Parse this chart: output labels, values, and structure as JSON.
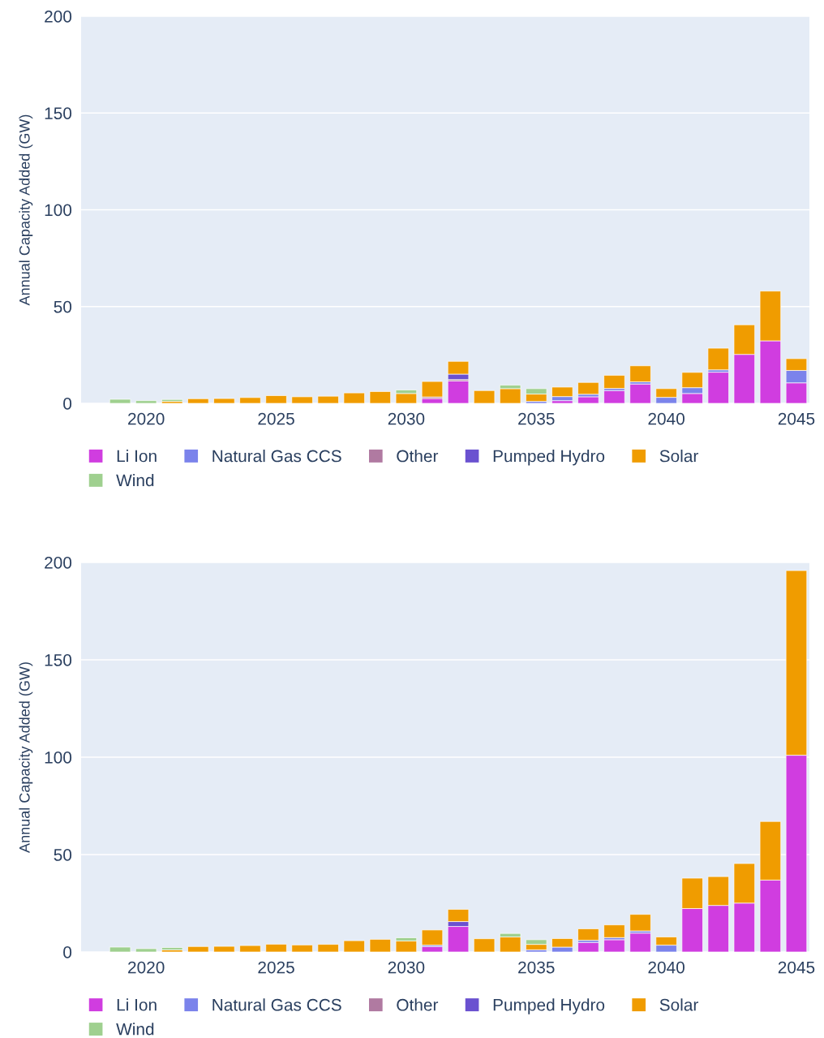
{
  "chart_data": [
    {
      "type": "bar",
      "stacked": true,
      "ylabel": "Annual Capacity Added (GW)",
      "x": [
        2019,
        2020,
        2021,
        2022,
        2023,
        2024,
        2025,
        2026,
        2027,
        2028,
        2029,
        2030,
        2031,
        2032,
        2033,
        2034,
        2035,
        2036,
        2037,
        2038,
        2039,
        2040,
        2041,
        2042,
        2043,
        2044,
        2045
      ],
      "xlim": [
        2017.5,
        2045.5
      ],
      "xticks": [
        2020,
        2025,
        2030,
        2035,
        2040,
        2045
      ],
      "ylim": [
        0,
        200
      ],
      "yticks": [
        0,
        50,
        100,
        150,
        200
      ],
      "grid": "y",
      "legend": "bottom",
      "series": [
        {
          "name": "Li Ion",
          "color": "#d03de0",
          "values": [
            null,
            null,
            null,
            null,
            null,
            null,
            null,
            null,
            null,
            null,
            null,
            null,
            2.5,
            11.6,
            null,
            null,
            null,
            1.4,
            3.4,
            6.6,
            10.0,
            null,
            5.1,
            16.1,
            25.3,
            32.3,
            10.6
          ]
        },
        {
          "name": "Natural Gas CCS",
          "color": "#7b83eb",
          "values": [
            null,
            null,
            null,
            null,
            null,
            null,
            null,
            null,
            null,
            null,
            null,
            null,
            null,
            null,
            null,
            null,
            1.0,
            2.1,
            1.3,
            1.1,
            1.1,
            3.1,
            3.0,
            1.2,
            null,
            null,
            6.4
          ]
        },
        {
          "name": "Other",
          "color": "#b07aa1",
          "values": [
            null,
            null,
            null,
            null,
            null,
            null,
            null,
            null,
            null,
            null,
            null,
            null,
            0.8,
            0.7,
            null,
            null,
            null,
            null,
            null,
            null,
            null,
            null,
            null,
            null,
            null,
            null,
            null
          ]
        },
        {
          "name": "Pumped Hydro",
          "color": "#6a51d0",
          "values": [
            null,
            null,
            null,
            null,
            null,
            null,
            null,
            null,
            null,
            null,
            null,
            null,
            null,
            2.8,
            null,
            null,
            null,
            null,
            null,
            null,
            null,
            null,
            null,
            null,
            null,
            null,
            null
          ]
        },
        {
          "name": "Solar",
          "color": "#f09c00",
          "values": [
            null,
            null,
            1.0,
            2.4,
            2.5,
            3.0,
            4.0,
            3.4,
            3.7,
            5.4,
            6.1,
            5.1,
            8.0,
            6.6,
            6.6,
            7.6,
            3.8,
            4.9,
            6.1,
            6.8,
            8.3,
            4.5,
            7.9,
            11.2,
            15.3,
            25.7,
            6.1
          ]
        },
        {
          "name": "Wind",
          "color": "#9fd08f",
          "values": [
            2.1,
            1.4,
            1.0,
            null,
            null,
            null,
            null,
            null,
            null,
            null,
            null,
            1.8,
            null,
            null,
            null,
            1.8,
            2.8,
            null,
            null,
            null,
            null,
            null,
            null,
            null,
            null,
            null,
            null
          ]
        }
      ]
    },
    {
      "type": "bar",
      "stacked": true,
      "ylabel": "Annual Capacity Added (GW)",
      "x": [
        2019,
        2020,
        2021,
        2022,
        2023,
        2024,
        2025,
        2026,
        2027,
        2028,
        2029,
        2030,
        2031,
        2032,
        2033,
        2034,
        2035,
        2036,
        2037,
        2038,
        2039,
        2040,
        2041,
        2042,
        2043,
        2044,
        2045
      ],
      "xlim": [
        2017.5,
        2045.5
      ],
      "xticks": [
        2020,
        2025,
        2030,
        2035,
        2040,
        2045
      ],
      "ylim": [
        0,
        200
      ],
      "yticks": [
        0,
        50,
        100,
        150,
        200
      ],
      "grid": "y",
      "legend": "bottom",
      "series": [
        {
          "name": "Li Ion",
          "color": "#d03de0",
          "values": [
            null,
            null,
            null,
            null,
            null,
            null,
            null,
            null,
            null,
            null,
            null,
            null,
            2.8,
            13.1,
            null,
            null,
            null,
            null,
            4.9,
            6.3,
            9.7,
            null,
            22.3,
            23.9,
            25.1,
            36.9,
            101
          ]
        },
        {
          "name": "Natural Gas CCS",
          "color": "#7b83eb",
          "values": [
            null,
            null,
            null,
            null,
            null,
            null,
            null,
            null,
            null,
            null,
            null,
            null,
            0.7,
            null,
            null,
            null,
            1.1,
            2.5,
            1.1,
            1.1,
            1.1,
            3.5,
            null,
            null,
            null,
            null,
            null
          ]
        },
        {
          "name": "Other",
          "color": "#b07aa1",
          "values": [
            null,
            null,
            null,
            null,
            null,
            null,
            null,
            null,
            null,
            null,
            null,
            null,
            null,
            null,
            null,
            null,
            null,
            null,
            null,
            null,
            null,
            null,
            null,
            null,
            null,
            null,
            null
          ]
        },
        {
          "name": "Pumped Hydro",
          "color": "#6a51d0",
          "values": [
            null,
            null,
            null,
            null,
            null,
            null,
            null,
            null,
            null,
            null,
            null,
            null,
            null,
            2.5,
            null,
            null,
            null,
            null,
            null,
            null,
            null,
            null,
            null,
            null,
            null,
            null,
            null
          ]
        },
        {
          "name": "Solar",
          "color": "#f09c00",
          "values": [
            null,
            null,
            1.1,
            2.8,
            2.9,
            3.3,
            4.0,
            3.6,
            3.9,
            5.8,
            6.5,
            5.7,
            7.8,
            6.3,
            6.8,
            7.7,
            2.8,
            4.4,
            5.9,
            6.5,
            8.5,
            4.2,
            15.6,
            14.8,
            20.3,
            30.1,
            94.8
          ]
        },
        {
          "name": "Wind",
          "color": "#9fd08f",
          "values": [
            2.5,
            1.7,
            1.2,
            null,
            null,
            null,
            null,
            null,
            null,
            null,
            null,
            1.6,
            null,
            null,
            null,
            1.8,
            2.4,
            null,
            null,
            null,
            null,
            null,
            null,
            null,
            null,
            null,
            null
          ]
        }
      ]
    }
  ]
}
